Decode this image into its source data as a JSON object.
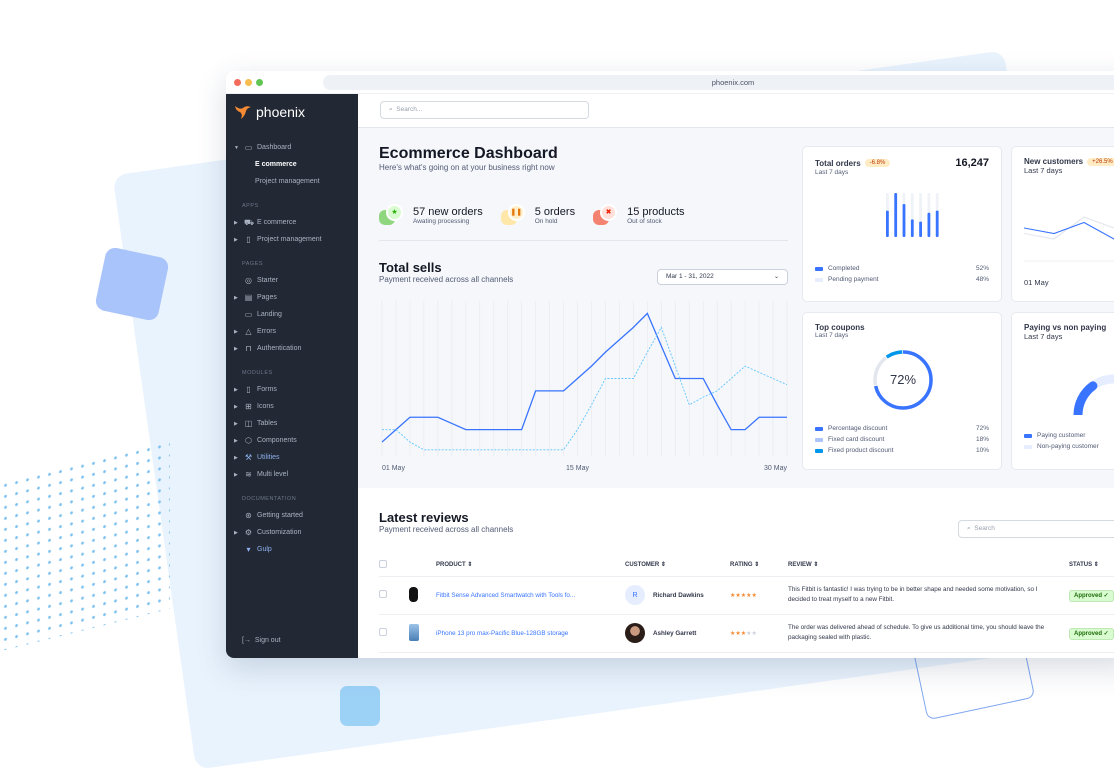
{
  "browser": {
    "url": "phoenix.com"
  },
  "brand": {
    "name": "phoenix"
  },
  "sidebar": {
    "items": [
      {
        "type": "item",
        "label": "Dashboard",
        "icon": "monitor",
        "caret": "down"
      },
      {
        "type": "sub",
        "label": "E commerce",
        "active": true
      },
      {
        "type": "sub",
        "label": "Project management"
      },
      {
        "type": "label",
        "label": "APPS"
      },
      {
        "type": "item",
        "label": "E commerce",
        "icon": "cart",
        "caret": "right"
      },
      {
        "type": "item",
        "label": "Project management",
        "icon": "clipboard",
        "caret": "right"
      },
      {
        "type": "label",
        "label": "PAGES"
      },
      {
        "type": "item",
        "label": "Starter",
        "icon": "compass"
      },
      {
        "type": "item",
        "label": "Pages",
        "icon": "layout",
        "caret": "right"
      },
      {
        "type": "item",
        "label": "Landing",
        "icon": "monitor"
      },
      {
        "type": "item",
        "label": "Errors",
        "icon": "alert-triangle",
        "caret": "right"
      },
      {
        "type": "item",
        "label": "Authentication",
        "icon": "lock",
        "caret": "right"
      },
      {
        "type": "label",
        "label": "MODULES"
      },
      {
        "type": "item",
        "label": "Forms",
        "icon": "file-text",
        "caret": "right"
      },
      {
        "type": "item",
        "label": "Icons",
        "icon": "grid",
        "caret": "right"
      },
      {
        "type": "item",
        "label": "Tables",
        "icon": "columns",
        "caret": "right"
      },
      {
        "type": "item",
        "label": "Components",
        "icon": "package",
        "caret": "right"
      },
      {
        "type": "item",
        "label": "Utilities",
        "icon": "tool",
        "caret": "right",
        "blue": true
      },
      {
        "type": "item",
        "label": "Multi level",
        "icon": "layers",
        "caret": "right"
      },
      {
        "type": "label",
        "label": "DOCUMENTATION"
      },
      {
        "type": "item",
        "label": "Getting started",
        "icon": "life-buoy"
      },
      {
        "type": "item",
        "label": "Customization",
        "icon": "settings",
        "caret": "right"
      },
      {
        "type": "item",
        "label": "Gulp",
        "icon": "gulp",
        "blue": true
      }
    ],
    "sign_out": "Sign out"
  },
  "topbar": {
    "search_placeholder": "Search..."
  },
  "header": {
    "title": "Ecommerce Dashboard",
    "subtitle": "Here's what's going on at your business right now"
  },
  "stats": [
    {
      "value": "57 new orders",
      "desc": "Awating processing",
      "icon": "star",
      "color": "#25b003",
      "bg": "#90d67f",
      "ring": "#d9fbd0"
    },
    {
      "value": "5 orders",
      "desc": "On hold",
      "icon": "pause",
      "color": "#e5780b",
      "bg": "#ffe6a9",
      "ring": "#ffefca"
    },
    {
      "value": "15 products",
      "desc": "Out of stock",
      "icon": "x",
      "color": "#ec1f00",
      "bg": "#f48270",
      "ring": "#ffe0db"
    }
  ],
  "total_sells": {
    "title": "Total sells",
    "subtitle": "Payment received across all channels",
    "date_range": "Mar 1 - 31, 2022",
    "chart_data": {
      "type": "line",
      "x": [
        1,
        2,
        3,
        4,
        5,
        6,
        7,
        8,
        9,
        10,
        11,
        12,
        13,
        14,
        15,
        16,
        17,
        18,
        19,
        20,
        21,
        22,
        23,
        24,
        25,
        26,
        27,
        28,
        29,
        30
      ],
      "x_tick_labels": [
        "01 May",
        "15 May",
        "30 May"
      ],
      "grid": "vertical",
      "series": [
        {
          "style": "solid",
          "color": "#3874ff",
          "values": [
            9,
            17,
            25,
            25,
            25,
            21,
            17,
            17,
            17,
            17,
            17,
            42,
            42,
            42,
            50,
            58,
            67,
            75,
            83,
            92,
            71,
            50,
            50,
            50,
            33,
            17,
            17,
            25,
            25,
            25
          ]
        },
        {
          "style": "dashed",
          "color": "#60c6ff",
          "values": [
            17,
            17,
            9,
            4,
            4,
            4,
            4,
            4,
            4,
            4,
            4,
            4,
            4,
            4,
            17,
            33,
            50,
            50,
            50,
            67,
            83,
            58,
            33,
            38,
            42,
            50,
            58,
            54,
            50,
            46
          ]
        }
      ]
    }
  },
  "cards": {
    "total_orders": {
      "title": "Total orders",
      "badge": "-6.8%",
      "value": "16,247",
      "period": "Last 7 days",
      "chart_data": {
        "type": "bar",
        "values": [
          0.6,
          1.0,
          0.75,
          0.4,
          0.35,
          0.55,
          0.6
        ]
      },
      "legend": [
        {
          "label": "Completed",
          "value": "52%",
          "color": "#3874ff"
        },
        {
          "label": "Pending payment",
          "value": "48%",
          "color": "#e5edff"
        }
      ]
    },
    "new_customers": {
      "title": "New customers",
      "badge": "+26.5%",
      "period": "Last 7 days",
      "x_label": "01 May",
      "chart_data": {
        "type": "line",
        "series": [
          {
            "color": "#3874ff",
            "values": [
              60,
              50,
              70,
              40,
              65
            ]
          },
          {
            "color": "#e3e6ed",
            "values": [
              50,
              40,
              80,
              60,
              75
            ]
          }
        ]
      }
    },
    "top_coupons": {
      "title": "Top coupons",
      "period": "Last 7 days",
      "center": "72%",
      "chart_data": {
        "type": "pie",
        "values": [
          72,
          18,
          10
        ]
      },
      "legend": [
        {
          "label": "Percentage discount",
          "value": "72%",
          "color": "#3874ff"
        },
        {
          "label": "Fixed card discount",
          "value": "18%",
          "color": "#adc5fb"
        },
        {
          "label": "Fixed product discount",
          "value": "10%",
          "color": "#0097eb"
        }
      ]
    },
    "paying": {
      "title": "Paying vs non paying",
      "period": "Last 7 days",
      "chart_data": {
        "type": "gauge",
        "values": [
          30,
          70
        ]
      },
      "legend": [
        {
          "label": "Paying customer",
          "color": "#3874ff"
        },
        {
          "label": "Non-paying customer",
          "color": "#e5edff"
        }
      ]
    }
  },
  "reviews": {
    "title": "Latest reviews",
    "subtitle": "Payment received across all channels",
    "search_placeholder": "Search",
    "columns": [
      "PRODUCT",
      "CUSTOMER",
      "RATING",
      "REVIEW",
      "STATUS"
    ],
    "rows": [
      {
        "product": "Fitbit Sense Advanced Smartwatch with Tools fo...",
        "customer": "Richard Dawkins",
        "initial": "R",
        "rating": 5,
        "review": "This Fitbit is fantastic! I was trying to be in better shape and needed some motivation, so I decided to treat myself to a new Fitbit.",
        "status": "Approved"
      },
      {
        "product": "iPhone 13 pro max-Pacific Blue-128GB storage",
        "customer": "Ashley Garrett",
        "rating": 3,
        "review": "The order was delivered ahead of schedule. To give us additional time, you should leave the packaging sealed with plastic.",
        "status": "Approved"
      }
    ]
  }
}
